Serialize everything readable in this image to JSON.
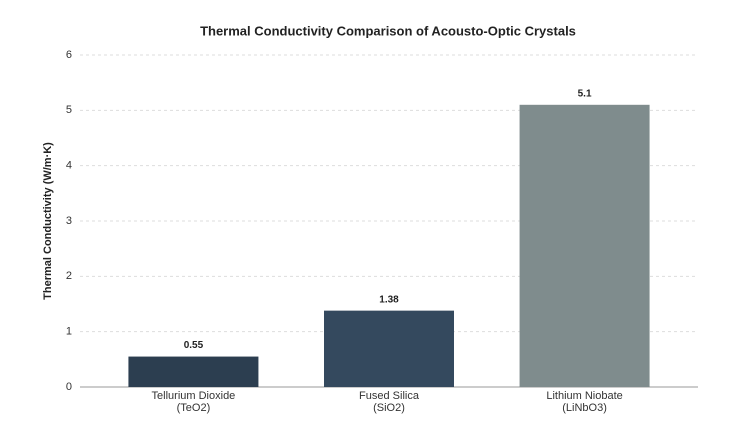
{
  "chart_data": {
    "type": "bar",
    "title": "Thermal Conductivity Comparison of Acousto-Optic Crystals",
    "ylabel": "Thermal Conductivity (W/m·K)",
    "categories": [
      [
        "Tellurium Dioxide",
        "(TeO2)"
      ],
      [
        "Fused Silica",
        "(SiO2)"
      ],
      [
        "Lithium Niobate",
        "(LiNbO3)"
      ]
    ],
    "values": [
      0.55,
      1.38,
      5.1
    ],
    "colors": [
      "#2c3e50",
      "#34495e",
      "#7f8c8d"
    ],
    "ylim": [
      0,
      6
    ],
    "yticks": [
      0,
      1,
      2,
      3,
      4,
      5,
      6
    ],
    "grid": true
  }
}
